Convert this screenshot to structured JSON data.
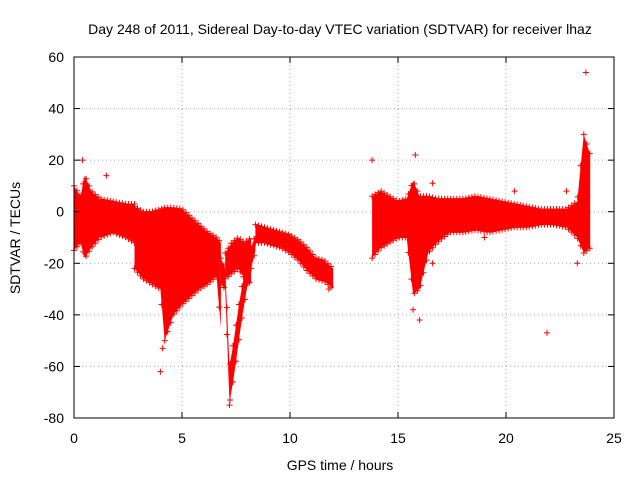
{
  "chart_data": {
    "type": "scatter",
    "title": "Day 248 of 2011, Sidereal Day-to-day VTEC variation (SDTVAR) for receiver lhaz",
    "xlabel": "GPS time / hours",
    "ylabel": "SDTVAR / TECUs",
    "xlim": [
      0,
      25
    ],
    "ylim": [
      -80,
      60
    ],
    "xticks": [
      0,
      5,
      10,
      15,
      20,
      25
    ],
    "yticks": [
      -80,
      -60,
      -40,
      -20,
      0,
      20,
      40,
      60
    ],
    "grid": true,
    "marker": "+",
    "color": "#ff0000",
    "series": [
      {
        "name": "SDTVAR",
        "band_segments": [
          {
            "x": [
              0.0,
              0.3,
              0.5,
              0.8,
              1.2,
              1.8,
              2.4,
              2.8
            ],
            "upper": [
              10,
              6,
              14,
              8,
              5,
              4,
              3,
              3
            ],
            "lower": [
              -15,
              -12,
              -18,
              -14,
              -10,
              -8,
              -10,
              -12
            ]
          },
          {
            "x": [
              2.8,
              3.2,
              3.6,
              4.0,
              4.2,
              4.6,
              5.0,
              5.4,
              5.8,
              6.2,
              6.6,
              6.8
            ],
            "upper": [
              2,
              0,
              0,
              1,
              1.5,
              1.5,
              1,
              -2,
              -5,
              -8,
              -10,
              -12
            ],
            "lower": [
              -22,
              -26,
              -28,
              -30,
              -50,
              -40,
              -36,
              -33,
              -30,
              -28,
              -25,
              -45
            ]
          },
          {
            "x": [
              6.8,
              7.0,
              7.2,
              7.4,
              7.6,
              7.8,
              8.0,
              8.2,
              8.4
            ],
            "upper": [
              -18,
              -22,
              -60,
              -50,
              -38,
              -28,
              -20,
              -14,
              -9
            ],
            "lower": [
              -28,
              -30,
              -74,
              -64,
              -52,
              -40,
              -30,
              -22,
              -15
            ]
          },
          {
            "x": [
              7.0,
              7.3,
              7.6,
              7.9,
              8.2
            ],
            "upper": [
              -16,
              -12,
              -10,
              -12,
              -10
            ],
            "lower": [
              -26,
              -24,
              -22,
              -26,
              -28
            ]
          },
          {
            "x": [
              8.4,
              8.8,
              9.2,
              9.6,
              10.0,
              10.4,
              10.8,
              11.2,
              11.6,
              12.0
            ],
            "upper": [
              -5,
              -6,
              -7,
              -8,
              -9,
              -11,
              -14,
              -18,
              -19,
              -22
            ],
            "lower": [
              -12,
              -12,
              -13,
              -14,
              -16,
              -19,
              -23,
              -26,
              -27,
              -30
            ]
          },
          {
            "x": [
              13.8,
              14.2,
              14.6,
              15.0,
              15.4,
              15.7,
              16.0,
              16.4,
              16.8,
              17.4,
              18.0,
              18.6,
              19.2,
              19.8,
              20.4,
              21.0,
              21.6,
              22.2,
              22.8,
              23.3,
              23.6,
              23.9
            ],
            "upper": [
              6,
              8,
              6,
              4,
              5,
              12,
              6,
              6,
              5,
              5,
              5,
              6,
              5,
              4,
              3,
              2,
              1,
              1,
              1,
              4,
              30,
              22
            ],
            "lower": [
              -18,
              -14,
              -12,
              -10,
              -10,
              -32,
              -30,
              -16,
              -12,
              -8,
              -8,
              -7,
              -8,
              -7,
              -6,
              -6,
              -5,
              -5,
              -6,
              -10,
              -16,
              -14
            ]
          }
        ],
        "outliers": [
          {
            "x": 4.0,
            "y": -62
          },
          {
            "x": 21.9,
            "y": -47
          },
          {
            "x": 16.6,
            "y": 11
          },
          {
            "x": 20.4,
            "y": 8
          },
          {
            "x": 22.8,
            "y": 8
          },
          {
            "x": 23.7,
            "y": 54
          },
          {
            "x": 23.3,
            "y": -20
          },
          {
            "x": 13.8,
            "y": 20
          },
          {
            "x": 15.8,
            "y": 22
          },
          {
            "x": 16.0,
            "y": -42
          },
          {
            "x": 0.4,
            "y": 20
          },
          {
            "x": 1.5,
            "y": 14
          },
          {
            "x": 7.2,
            "y": -75
          },
          {
            "x": 4.1,
            "y": -53
          },
          {
            "x": 11.8,
            "y": -30
          },
          {
            "x": 15.7,
            "y": -38
          },
          {
            "x": 16.6,
            "y": -20
          },
          {
            "x": 19.0,
            "y": -10
          }
        ]
      }
    ]
  }
}
